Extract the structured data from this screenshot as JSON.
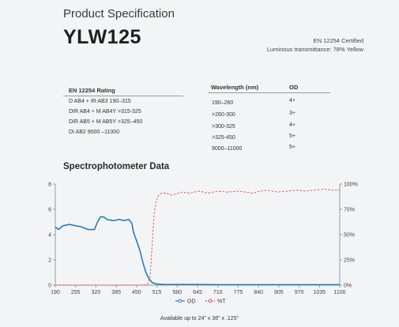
{
  "header": {
    "subtitle": "Product Specification",
    "product_name": "YLW125",
    "certification": "EN 12254 Certified",
    "luminous": "Luminous transmittance:  78% Yellow"
  },
  "rating_table": {
    "header": "EN 12254 Rating",
    "rows": [
      "D AB4 + IR AB3 190–315",
      "DIR AB4 + M AB4Y >315-325",
      "DIR AB5 + M AB5Y >325–450",
      "DI AB2 9000 –11000"
    ]
  },
  "od_table": {
    "headers": [
      "Wavelength (nm)",
      "OD"
    ],
    "rows": [
      {
        "wavelength": "190–260",
        "od": "4+"
      },
      {
        "wavelength": ">260-300",
        "od": "3+"
      },
      {
        "wavelength": ">300-325",
        "od": "4+"
      },
      {
        "wavelength": ">325-450",
        "od": "5+"
      },
      {
        "wavelength": "9000–11000",
        "od": "5+"
      }
    ]
  },
  "chart_title": "Spectrophotometer Data",
  "chart_data": {
    "type": "line",
    "title": "",
    "x_ticks": [
      "190",
      "255",
      "320",
      "385",
      "450",
      "515",
      "580",
      "645",
      "710",
      "775",
      "840",
      "905",
      "970",
      "1035",
      "1100"
    ],
    "xlim": [
      190,
      1100
    ],
    "ylim_left": [
      0,
      8
    ],
    "y_ticks_left": [
      "0",
      "2",
      "4",
      "6",
      "8"
    ],
    "ylim_right": [
      0,
      100
    ],
    "y_ticks_right": [
      "0%",
      "25%",
      "50%",
      "75%",
      "100%"
    ],
    "grid": false,
    "legend_position": "bottom",
    "series": [
      {
        "name": "OD",
        "axis": "left",
        "color": "#2b7bb9",
        "style": "solid",
        "points": [
          [
            190,
            4.6
          ],
          [
            200,
            4.4
          ],
          [
            215,
            4.7
          ],
          [
            235,
            4.8
          ],
          [
            255,
            4.7
          ],
          [
            275,
            4.6
          ],
          [
            295,
            4.4
          ],
          [
            315,
            4.4
          ],
          [
            325,
            5.0
          ],
          [
            335,
            5.4
          ],
          [
            345,
            5.4
          ],
          [
            355,
            5.2
          ],
          [
            375,
            5.1
          ],
          [
            395,
            5.2
          ],
          [
            410,
            5.1
          ],
          [
            425,
            5.2
          ],
          [
            435,
            4.9
          ],
          [
            440,
            4.2
          ],
          [
            450,
            3.5
          ],
          [
            460,
            2.8
          ],
          [
            470,
            1.8
          ],
          [
            480,
            1.0
          ],
          [
            490,
            0.5
          ],
          [
            500,
            0.2
          ],
          [
            515,
            0.08
          ],
          [
            540,
            0.05
          ],
          [
            580,
            0.05
          ],
          [
            645,
            0.05
          ],
          [
            710,
            0.04
          ],
          [
            775,
            0.04
          ],
          [
            840,
            0.04
          ],
          [
            905,
            0.04
          ],
          [
            970,
            0.04
          ],
          [
            1035,
            0.04
          ],
          [
            1100,
            0.04
          ]
        ]
      },
      {
        "name": "%T",
        "axis": "right",
        "color": "#e04b4b",
        "style": "dashed",
        "points": [
          [
            190,
            0
          ],
          [
            470,
            0
          ],
          [
            485,
            0.5
          ],
          [
            493,
            8
          ],
          [
            500,
            40
          ],
          [
            506,
            70
          ],
          [
            512,
            82
          ],
          [
            518,
            88
          ],
          [
            530,
            91
          ],
          [
            545,
            91
          ],
          [
            560,
            89
          ],
          [
            575,
            90
          ],
          [
            595,
            92
          ],
          [
            620,
            91
          ],
          [
            650,
            93
          ],
          [
            680,
            91
          ],
          [
            710,
            93
          ],
          [
            740,
            92
          ],
          [
            775,
            93
          ],
          [
            800,
            92
          ],
          [
            820,
            91
          ],
          [
            845,
            93
          ],
          [
            870,
            94
          ],
          [
            900,
            92
          ],
          [
            930,
            93
          ],
          [
            960,
            94
          ],
          [
            990,
            93
          ],
          [
            1020,
            94
          ],
          [
            1050,
            95
          ],
          [
            1075,
            94
          ],
          [
            1100,
            94
          ]
        ]
      }
    ]
  },
  "footer": "Available up to 24\" x 36\" x .125\""
}
